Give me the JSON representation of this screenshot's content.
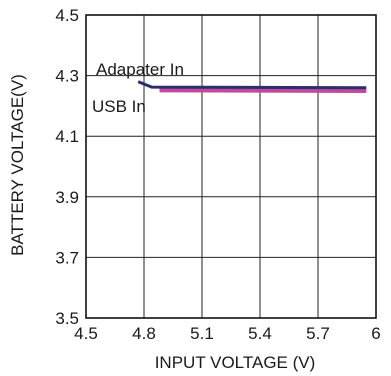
{
  "chart_data": {
    "type": "line",
    "title": "",
    "xlabel": "INPUT VOLTAGE (V)",
    "ylabel": "BATTERY VOLTAGE(V)",
    "xlim": [
      4.5,
      6.0
    ],
    "ylim": [
      3.5,
      4.5
    ],
    "x_ticks": [
      4.5,
      4.8,
      5.1,
      5.4,
      5.7,
      6.0
    ],
    "x_tick_labels": [
      "4.5",
      "4.8",
      "5.1",
      "5.4",
      "5.7",
      "6"
    ],
    "y_ticks": [
      3.5,
      3.7,
      3.9,
      4.1,
      4.3,
      4.5
    ],
    "y_tick_labels": [
      "3.5",
      "3.7",
      "3.9",
      "4.1",
      "4.3",
      "4.5"
    ],
    "grid": true,
    "series": [
      {
        "name": "Adapater In",
        "color": "#2b2f6e",
        "x": [
          4.77,
          4.84,
          5.95
        ],
        "y": [
          4.28,
          4.262,
          4.26
        ]
      },
      {
        "name": "USB In",
        "color": "#c04b9c",
        "x": [
          4.88,
          5.95
        ],
        "y": [
          4.252,
          4.25
        ]
      }
    ]
  }
}
